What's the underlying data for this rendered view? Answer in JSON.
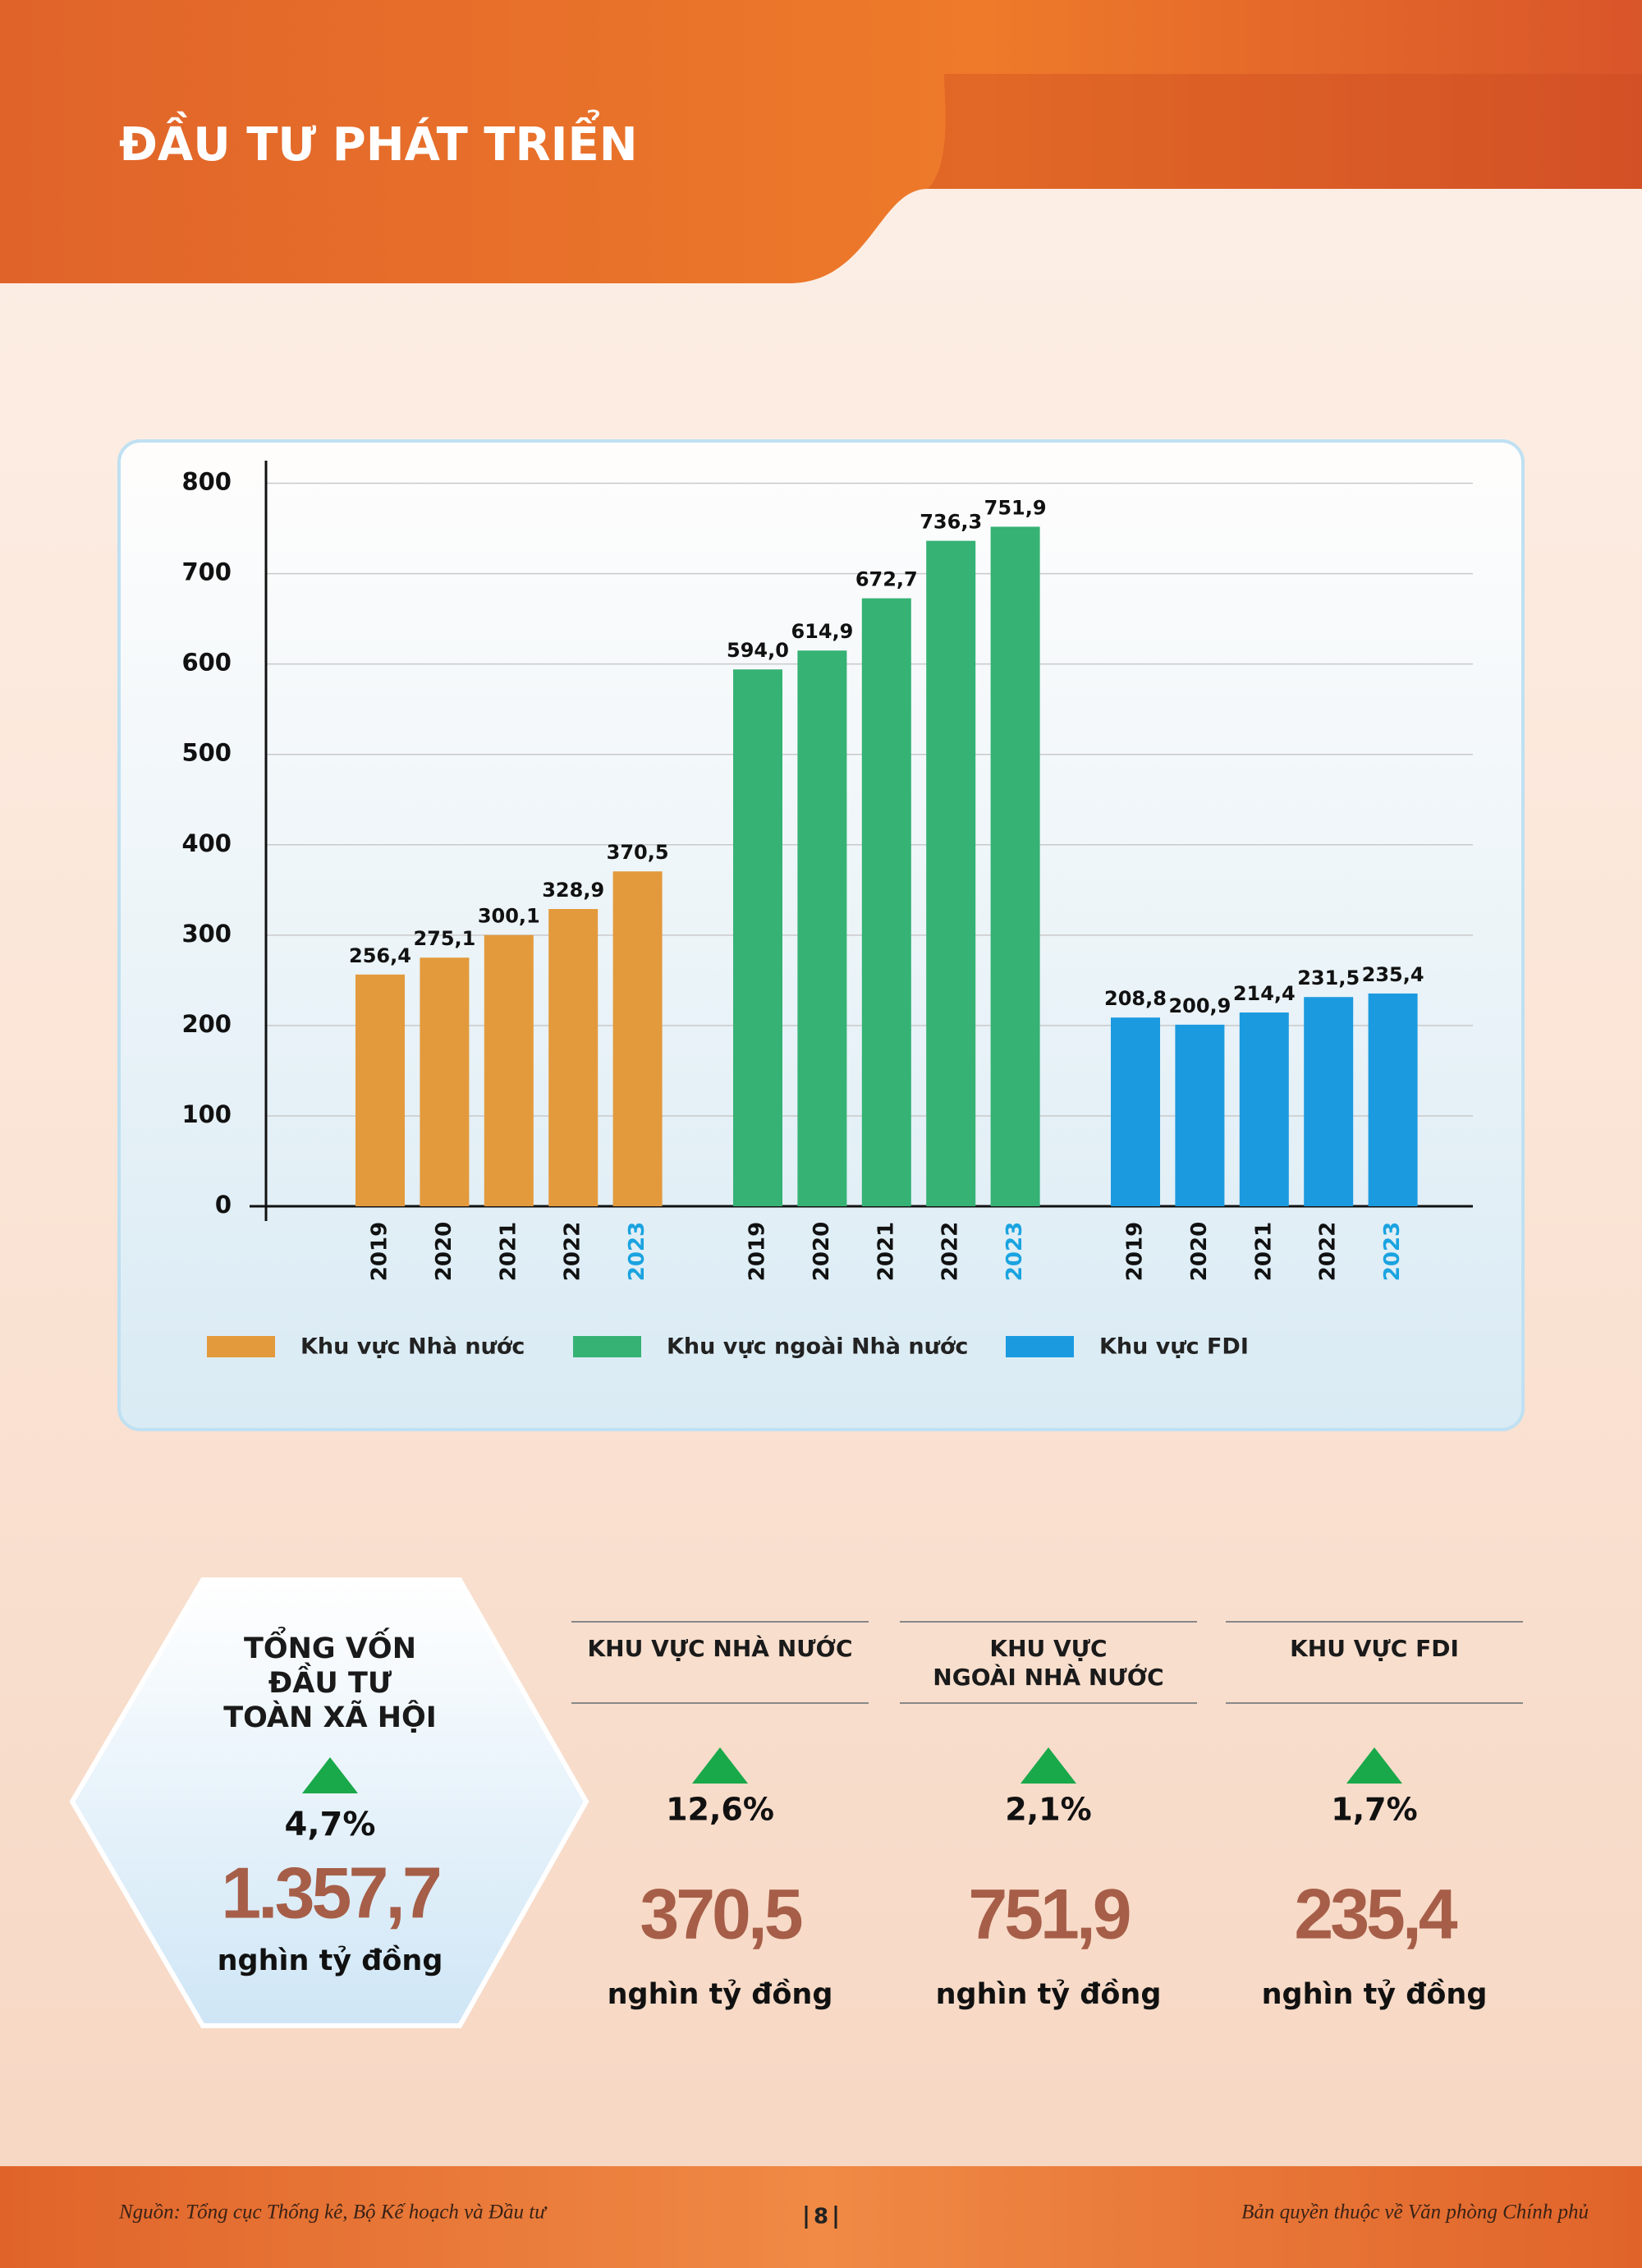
{
  "header": {
    "title": "ĐẦU TƯ PHÁT TRIỂN"
  },
  "chart_data": {
    "type": "bar",
    "categories": [
      "2019",
      "2020",
      "2021",
      "2022",
      "2023"
    ],
    "series": [
      {
        "name": "Khu vực Nhà nước",
        "color": "#e39a3c",
        "values": [
          256.4,
          275.1,
          300.1,
          328.9,
          370.5
        ],
        "value_labels": [
          "256,4",
          "275,1",
          "300,1",
          "328,9",
          "370,5"
        ]
      },
      {
        "name": "Khu vực ngoài Nhà nước",
        "color": "#35b274",
        "values": [
          594.0,
          614.9,
          672.7,
          736.3,
          751.9
        ],
        "value_labels": [
          "594,0",
          "614,9",
          "672,7",
          "736,3",
          "751,9"
        ]
      },
      {
        "name": "Khu vực FDI",
        "color": "#1b9ae0",
        "values": [
          208.8,
          200.9,
          214.4,
          231.5,
          235.4
        ],
        "value_labels": [
          "208,8",
          "200,9",
          "214,4",
          "231,5",
          "235,4"
        ]
      }
    ],
    "ylim": [
      0,
      825
    ],
    "yticks": [
      0,
      100,
      200,
      300,
      400,
      500,
      600,
      700,
      800
    ],
    "grid": true
  },
  "total": {
    "title_lines": [
      "TỔNG VỐN",
      "ĐẦU TƯ",
      "TOÀN XÃ HỘI"
    ],
    "change": "4,7%",
    "value": "1.357,7",
    "unit": "nghìn tỷ đồng"
  },
  "sectors": [
    {
      "title_lines": [
        "KHU VỰC NHÀ NƯỚC"
      ],
      "change": "12,6%",
      "value": "370,5",
      "unit": "nghìn tỷ đồng"
    },
    {
      "title_lines": [
        "KHU VỰC",
        "NGOÀI NHÀ NƯỚC"
      ],
      "change": "2,1%",
      "value": "751,9",
      "unit": "nghìn tỷ đồng"
    },
    {
      "title_lines": [
        "KHU VỰC FDI"
      ],
      "change": "1,7%",
      "value": "235,4",
      "unit": "nghìn tỷ đồng"
    }
  ],
  "footer": {
    "source": "Nguồn: Tổng cục Thống kê, Bộ Kế hoạch và Đầu tư",
    "page": "8",
    "copyright": "Bản quyền thuộc về Văn phòng Chính phủ"
  }
}
